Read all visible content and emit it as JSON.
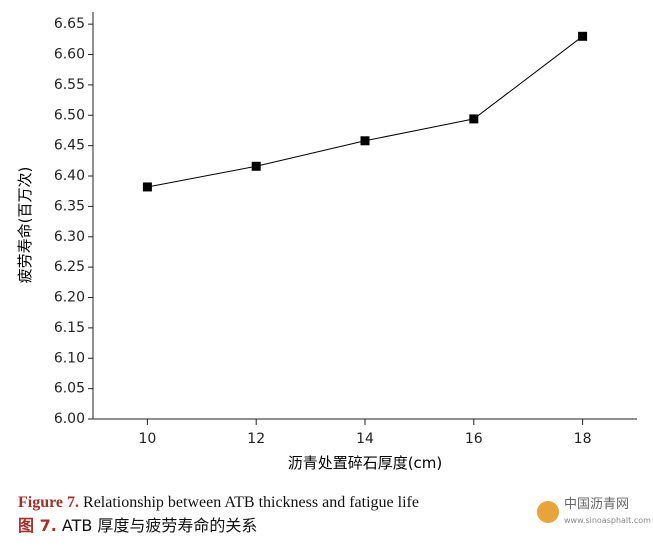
{
  "chart_data": {
    "type": "line",
    "x_label": "沥青处置碎石厚度(cm)",
    "y_label": "疲劳寿命(百万次)",
    "x": [
      10,
      12,
      14,
      16,
      18
    ],
    "series": [
      {
        "name": "fatigue life",
        "color": "#000000",
        "values": [
          6.382,
          6.416,
          6.458,
          6.494,
          6.63
        ]
      }
    ],
    "xlim": [
      9,
      19
    ],
    "xticks": [
      10,
      12,
      14,
      16,
      18
    ],
    "ylim": [
      6.0,
      6.67
    ],
    "yticks": [
      {
        "value": 6.0,
        "label": "6.00"
      },
      {
        "value": 6.05,
        "label": "6.05"
      },
      {
        "value": 6.1,
        "label": "6.10"
      },
      {
        "value": 6.15,
        "label": "6.15"
      },
      {
        "value": 6.2,
        "label": "6.20"
      },
      {
        "value": 6.25,
        "label": "6.25"
      },
      {
        "value": 6.3,
        "label": "6.30"
      },
      {
        "value": 6.35,
        "label": "6.35"
      },
      {
        "value": 6.4,
        "label": "6.40"
      },
      {
        "value": 6.45,
        "label": "6.45"
      },
      {
        "value": 6.5,
        "label": "6.50"
      },
      {
        "value": 6.55,
        "label": "6.55"
      },
      {
        "value": 6.6,
        "label": "6.60"
      },
      {
        "value": 6.65,
        "label": "6.65"
      }
    ],
    "grid": false
  },
  "caption": {
    "en_label": "Figure 7.",
    "en_text": "Relationship between ATB thickness and fatigue life",
    "zh_label": "图 7.",
    "zh_text": "ATB 厚度与疲劳寿命的关系"
  },
  "watermark": {
    "name": "中国沥青网",
    "url": "www.sinoasphalt.com"
  }
}
